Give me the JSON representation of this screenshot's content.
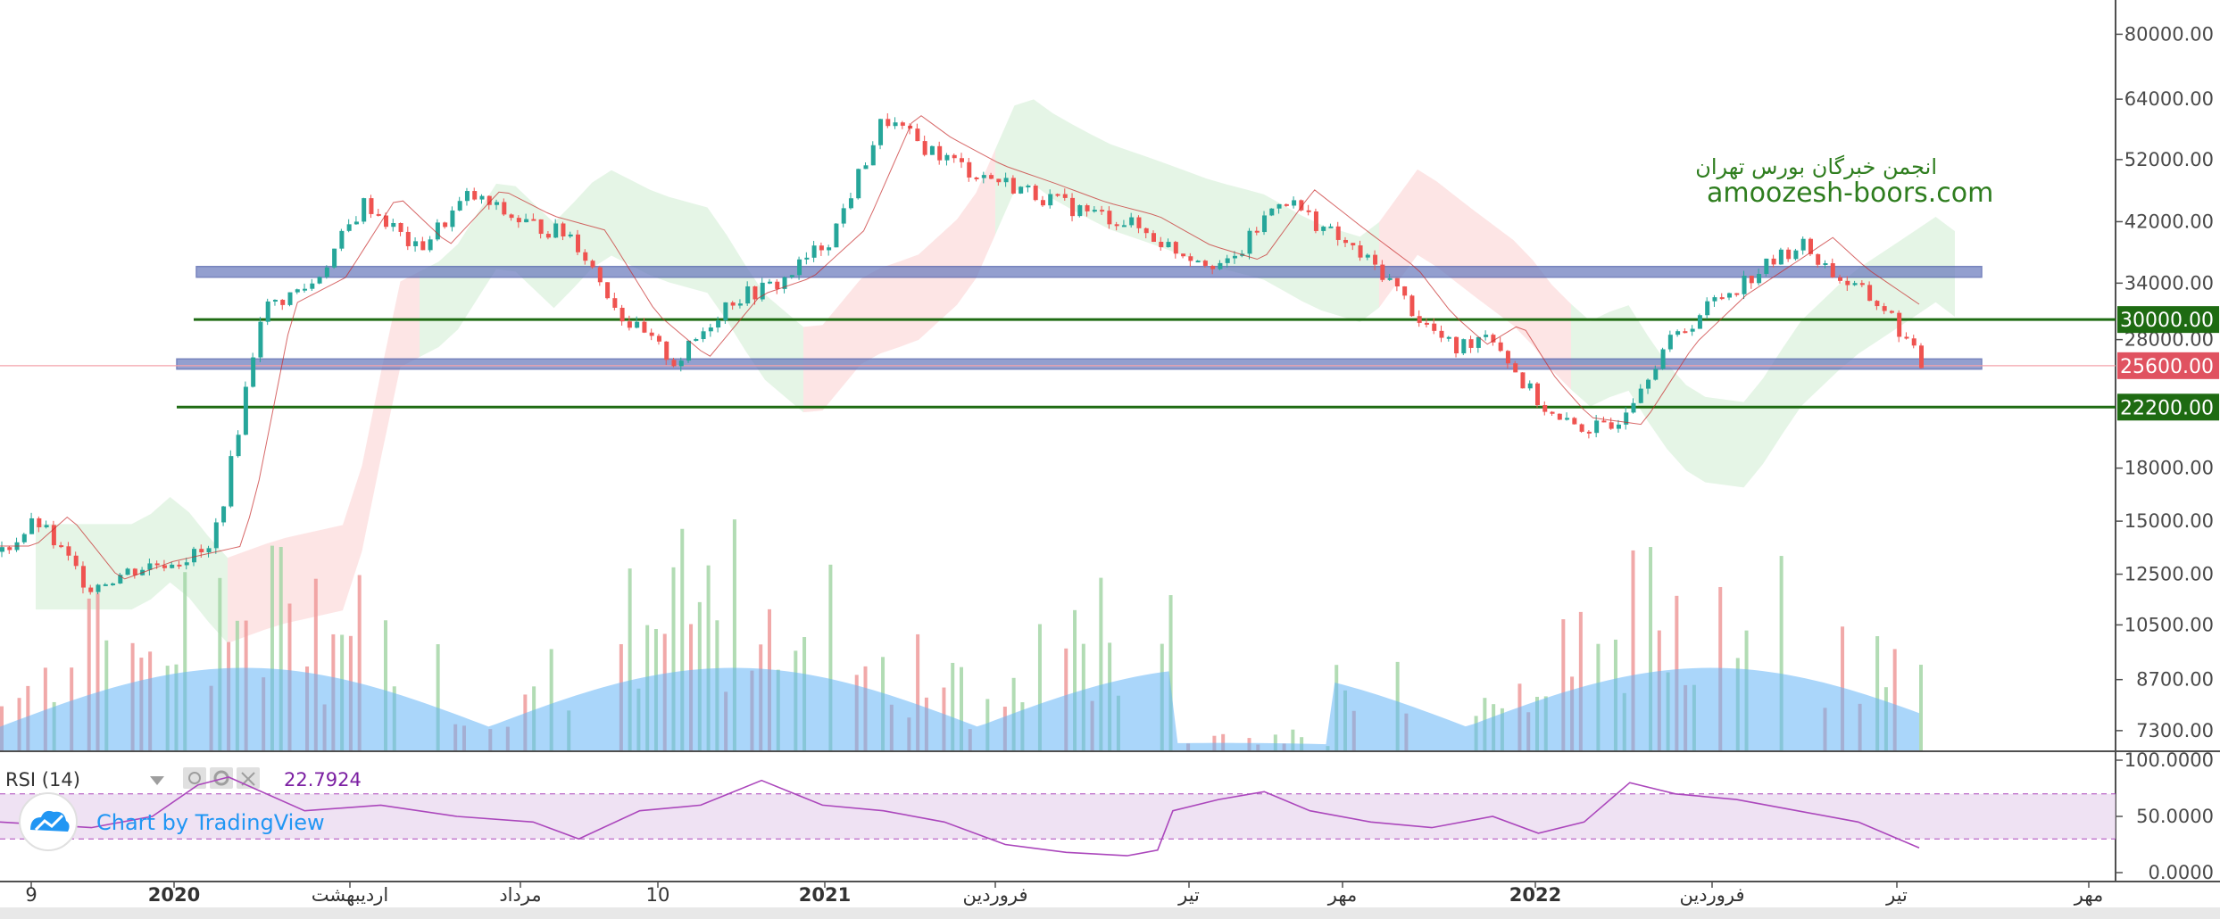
{
  "chart_data": {
    "type": "candlestick",
    "symbol_watermark": {
      "line1": "انجمن خبرگان بورس تهران",
      "line2": "amoozesh-boors.com"
    },
    "y_axis": {
      "ticks": [
        "80000.00",
        "64000.00",
        "52000.00",
        "42000.00",
        "34000.00",
        "28000.00",
        "18000.00",
        "15000.00",
        "12500.00",
        "10500.00",
        "8700.00",
        "7300.00"
      ],
      "ylim": [
        6800,
        90000
      ],
      "scale": "log"
    },
    "x_axis": {
      "labels": [
        {
          "text": "9",
          "bold": false
        },
        {
          "text": "2020",
          "bold": true
        },
        {
          "text": "اردیبهشت",
          "bold": false
        },
        {
          "text": "مرداد",
          "bold": false
        },
        {
          "text": "10",
          "bold": false
        },
        {
          "text": "2021",
          "bold": true
        },
        {
          "text": "فروردین",
          "bold": false
        },
        {
          "text": "تیر",
          "bold": false
        },
        {
          "text": "مهر",
          "bold": false
        },
        {
          "text": "2022",
          "bold": true
        },
        {
          "text": "فروردین",
          "bold": false
        },
        {
          "text": "تیر",
          "bold": false
        },
        {
          "text": "مهر",
          "bold": false
        }
      ]
    },
    "price_path": [
      [
        0,
        13500
      ],
      [
        2,
        15000
      ],
      [
        5,
        12000
      ],
      [
        8,
        12800
      ],
      [
        12,
        13500
      ],
      [
        13,
        17000
      ],
      [
        15,
        31000
      ],
      [
        18,
        34000
      ],
      [
        21,
        45000
      ],
      [
        24,
        38000
      ],
      [
        27,
        46000
      ],
      [
        30,
        42000
      ],
      [
        33,
        40000
      ],
      [
        36,
        30000
      ],
      [
        39,
        25800
      ],
      [
        42,
        32000
      ],
      [
        45,
        34000
      ],
      [
        48,
        40000
      ],
      [
        51,
        60000
      ],
      [
        53,
        55000
      ],
      [
        56,
        50000
      ],
      [
        59,
        47000
      ],
      [
        62,
        44000
      ],
      [
        65,
        42000
      ],
      [
        68,
        38000
      ],
      [
        71,
        36000
      ],
      [
        74,
        46000
      ],
      [
        77,
        40000
      ],
      [
        80,
        35000
      ],
      [
        82,
        30000
      ],
      [
        84,
        27000
      ],
      [
        86,
        29000
      ],
      [
        88,
        24000
      ],
      [
        90,
        21000
      ],
      [
        93,
        20500
      ],
      [
        96,
        27000
      ],
      [
        99,
        32000
      ],
      [
        102,
        36000
      ],
      [
        104,
        39000
      ],
      [
        106,
        35000
      ],
      [
        109,
        31000
      ],
      [
        111,
        25600
      ]
    ],
    "horizontal_levels": [
      {
        "kind": "zone",
        "from": 34700,
        "to": 36000
      },
      {
        "kind": "zone",
        "from": 25300,
        "to": 26200
      },
      {
        "kind": "line",
        "value": 30000
      },
      {
        "kind": "line",
        "value": 22200
      }
    ],
    "price_tags": [
      {
        "value": 30000,
        "label": "30000.00",
        "color": "#1e6b12"
      },
      {
        "value": 25600,
        "label": "25600.00",
        "color": "#e05260"
      },
      {
        "value": 22200,
        "label": "22200.00",
        "color": "#1e6b12"
      }
    ],
    "current_price": 25600,
    "rsi": {
      "title": "RSI (14)",
      "value": "22.7924",
      "ticks": [
        "100.0000",
        "50.0000",
        "0.0000"
      ],
      "upper_band": 70,
      "lower_band": 30,
      "path": [
        [
          0,
          45
        ],
        [
          6,
          40
        ],
        [
          10,
          50
        ],
        [
          13,
          78
        ],
        [
          15,
          85
        ],
        [
          20,
          55
        ],
        [
          25,
          60
        ],
        [
          30,
          50
        ],
        [
          35,
          45
        ],
        [
          38,
          30
        ],
        [
          42,
          55
        ],
        [
          46,
          60
        ],
        [
          50,
          82
        ],
        [
          54,
          60
        ],
        [
          58,
          55
        ],
        [
          62,
          45
        ],
        [
          66,
          25
        ],
        [
          70,
          18
        ],
        [
          74,
          15
        ],
        [
          76,
          20
        ],
        [
          77,
          55
        ],
        [
          80,
          65
        ],
        [
          83,
          72
        ],
        [
          86,
          55
        ],
        [
          90,
          45
        ],
        [
          94,
          40
        ],
        [
          98,
          50
        ],
        [
          101,
          35
        ],
        [
          104,
          45
        ],
        [
          107,
          80
        ],
        [
          110,
          70
        ],
        [
          114,
          65
        ],
        [
          118,
          55
        ],
        [
          122,
          45
        ],
        [
          126,
          22
        ]
      ]
    },
    "colors": {
      "up": "#26a69a",
      "down": "#ef5350",
      "zone": "#6f7fbf",
      "level": "#1e6b12",
      "rsi": "#ab47bc",
      "rsi_band": "#e8d5ee",
      "cloud_green": "#dff2e0",
      "cloud_red": "#fddede",
      "volume_area": "#64b5f6"
    }
  },
  "branding": {
    "logo_text": "Chart by TradingView",
    "logo_icon": "tradingview-cloud-icon"
  }
}
